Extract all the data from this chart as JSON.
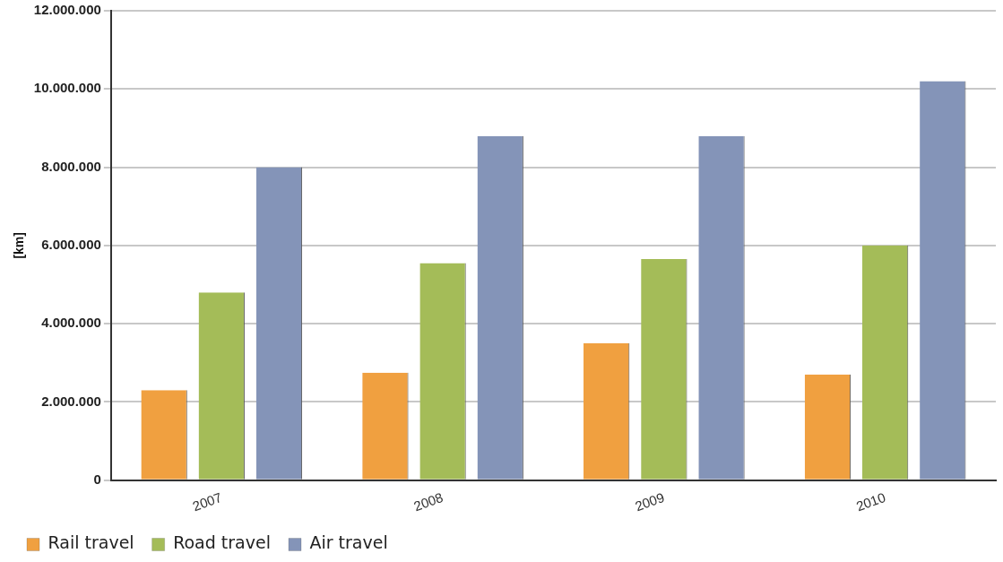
{
  "chart_data": {
    "type": "bar",
    "ylabel": "[km]",
    "categories": [
      "2007",
      "2008",
      "2009",
      "2010"
    ],
    "series": [
      {
        "name": "Rail travel",
        "color": "#f0a040",
        "values": [
          2300000,
          2750000,
          3500000,
          2700000
        ]
      },
      {
        "name": "Road travel",
        "color": "#a4bc58",
        "values": [
          4800000,
          5550000,
          5650000,
          6000000
        ]
      },
      {
        "name": "Air travel",
        "color": "#8494b8",
        "values": [
          8000000,
          8800000,
          8800000,
          10200000
        ]
      }
    ],
    "ylim": [
      0,
      12000000
    ],
    "yticks": [
      {
        "value": 0,
        "label": "0"
      },
      {
        "value": 2000000,
        "label": "2.000.000"
      },
      {
        "value": 4000000,
        "label": "4.000.000"
      },
      {
        "value": 6000000,
        "label": "6.000.000"
      },
      {
        "value": 8000000,
        "label": "8.000.000"
      },
      {
        "value": 10000000,
        "label": "10.000.000"
      },
      {
        "value": 12000000,
        "label": "12.000.000"
      }
    ],
    "grid": "y",
    "legend": "bottom left"
  }
}
